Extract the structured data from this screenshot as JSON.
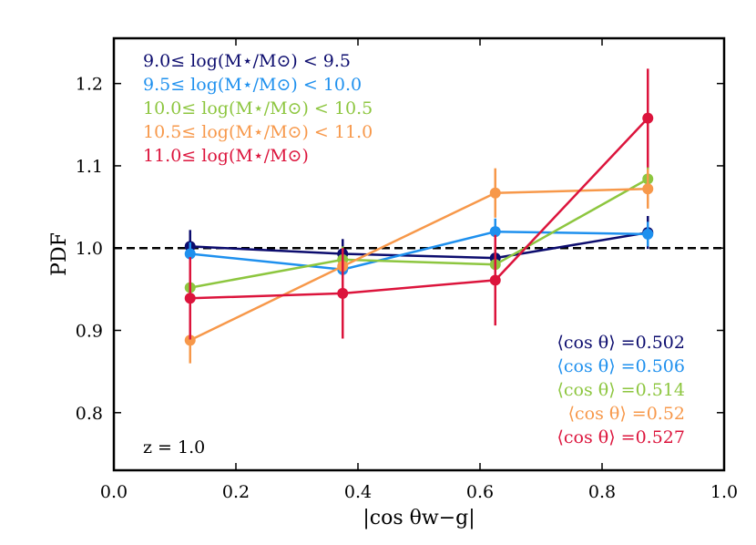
{
  "chart_data": {
    "type": "line",
    "title": "",
    "xlabel": "|cos θw−g|",
    "ylabel": "PDF",
    "xlim": [
      0.0,
      1.0
    ],
    "ylim": [
      0.73,
      1.255
    ],
    "xticks": [
      0.0,
      0.2,
      0.4,
      0.6,
      0.8,
      1.0
    ],
    "xtick_labels": [
      "0.0",
      "0.2",
      "0.4",
      "0.6",
      "0.8",
      "1.0"
    ],
    "yticks": [
      0.8,
      0.9,
      1.0,
      1.1,
      1.2
    ],
    "ytick_labels": [
      "0.8",
      "0.9",
      "1.0",
      "1.1",
      "1.2"
    ],
    "grid": false,
    "reference_line": {
      "y": 1.0,
      "style": "dashed",
      "color": "#000000"
    },
    "annotation": "z = 1.0",
    "x": [
      0.125,
      0.375,
      0.625,
      0.875
    ],
    "series": [
      {
        "name": "9.0≤ log(M⋆/M⊙) < 9.5",
        "color": "#0c0c6e",
        "values": [
          1.002,
          0.993,
          0.988,
          1.019
        ],
        "errors": [
          0.02,
          0.018,
          0.016,
          0.02
        ]
      },
      {
        "name": "9.5≤ log(M⋆/M⊙) < 10.0",
        "color": "#1e90ee",
        "values": [
          0.993,
          0.974,
          1.02,
          1.017
        ],
        "errors": [
          0.014,
          0.016,
          0.016,
          0.015
        ]
      },
      {
        "name": "10.0≤ log(M⋆/M⊙) < 10.5",
        "color": "#8dc63f",
        "values": [
          0.952,
          0.986,
          0.98,
          1.084
        ],
        "errors": [
          0.02,
          0.016,
          0.018,
          0.02
        ]
      },
      {
        "name": "10.5≤ log(M⋆/M⊙) < 11.0",
        "color": "#f7984a",
        "values": [
          0.888,
          0.978,
          1.067,
          1.072
        ],
        "errors": [
          0.028,
          0.022,
          0.03,
          0.024
        ]
      },
      {
        "name": "11.0≤ log(M⋆/M⊙)",
        "color": "#dc143c",
        "values": [
          0.939,
          0.945,
          0.961,
          1.158
        ],
        "errors": [
          0.05,
          0.055,
          0.055,
          0.06
        ]
      }
    ],
    "legend": {
      "placement": "top-left",
      "entries": [
        {
          "text": "9.0≤ log(M⋆/M⊙) < 9.5",
          "color": "#0c0c6e"
        },
        {
          "text": "9.5≤ log(M⋆/M⊙) < 10.0",
          "color": "#1e90ee"
        },
        {
          "text": "10.0≤ log(M⋆/M⊙) < 10.5",
          "color": "#8dc63f"
        },
        {
          "text": "10.5≤ log(M⋆/M⊙) < 11.0",
          "color": "#f7984a"
        },
        {
          "text": "11.0≤ log(M⋆/M⊙)",
          "color": "#dc143c"
        }
      ]
    },
    "mean_cos": {
      "placement": "bottom-right",
      "entries": [
        {
          "text": "⟨cos θ⟩ =0.502",
          "color": "#0c0c6e"
        },
        {
          "text": "⟨cos θ⟩ =0.506",
          "color": "#1e90ee"
        },
        {
          "text": "⟨cos θ⟩ =0.514",
          "color": "#8dc63f"
        },
        {
          "text": "⟨cos θ⟩ =0.52",
          "color": "#f7984a"
        },
        {
          "text": "⟨cos θ⟩ =0.527",
          "color": "#dc143c"
        }
      ]
    }
  }
}
